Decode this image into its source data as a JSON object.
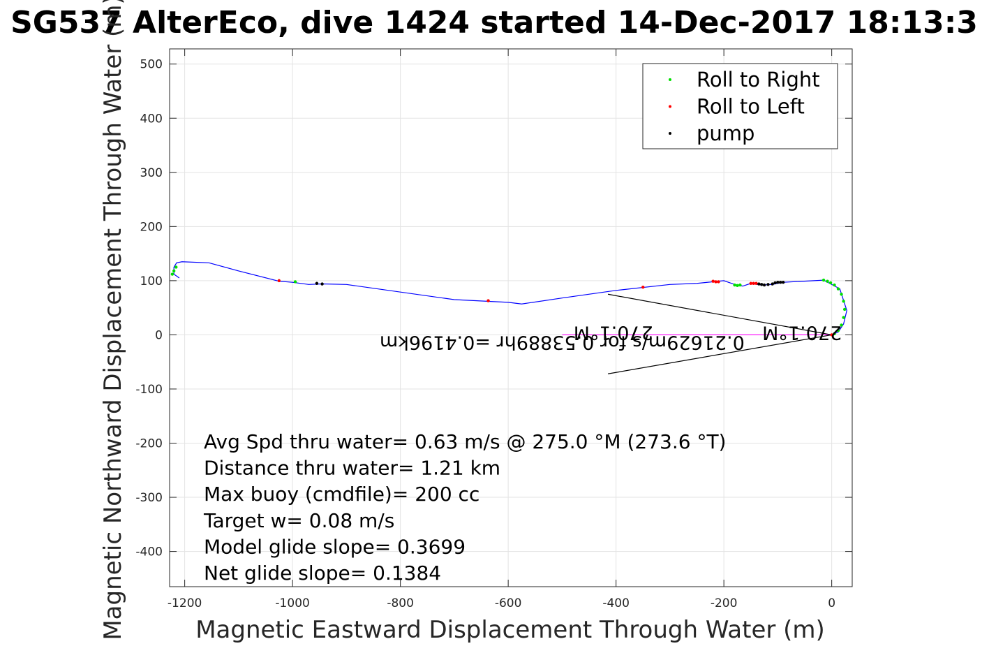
{
  "chart_data": {
    "type": "line",
    "title": "SG537 AlterEco, dive 1424 started 14-Dec-2017 18:13:3",
    "xlabel": "Magnetic Eastward Displacement Through Water (m)",
    "ylabel": "Magnetic Northward Displacement Through Water (m)",
    "xlim": [
      -1228,
      38
    ],
    "ylim": [
      -465,
      528
    ],
    "xticks": [
      -1200,
      -1000,
      -800,
      -600,
      -400,
      -200,
      0
    ],
    "yticks": [
      -400,
      -300,
      -200,
      -100,
      0,
      100,
      200,
      300,
      400,
      500
    ],
    "grid": true,
    "legend_placement": "top-right",
    "colors": {
      "track": "#0000ff",
      "roll_right": "#00e000",
      "roll_left": "#ff0000",
      "pump": "#000000",
      "current": "#ff00ff",
      "arrow": "#000000"
    },
    "series": [
      {
        "name": "Roll to Right",
        "marker": "dot",
        "x": [
          -1223,
          -1220,
          -1216,
          -995,
          -180,
          -175,
          -170,
          -15,
          -8,
          -2,
          5,
          12,
          18,
          22,
          24,
          22,
          18,
          12,
          5
        ],
        "y": [
          112,
          118,
          125,
          98,
          92,
          91,
          92,
          101,
          99,
          96,
          92,
          85,
          75,
          62,
          47,
          32,
          18,
          8,
          2
        ]
      },
      {
        "name": "Roll to Left",
        "marker": "dot",
        "x": [
          -1025,
          -637,
          -350,
          -220,
          -215,
          -210,
          -150,
          -145,
          -140,
          0
        ],
        "y": [
          100,
          63,
          88,
          99,
          98,
          98,
          95,
          95,
          95,
          0
        ]
      },
      {
        "name": "pump",
        "marker": "dot",
        "x": [
          -955,
          -945,
          -135,
          -130,
          -125,
          -118,
          -110,
          -105,
          -100,
          -95,
          -90
        ],
        "y": [
          95,
          94,
          94,
          93,
          92,
          93,
          94,
          96,
          97,
          97,
          97
        ]
      },
      {
        "name": "",
        "role": "track",
        "x": [
          -1210,
          -1220,
          -1220,
          -1215,
          -1205,
          -1155,
          -1100,
          -1025,
          -1000,
          -970,
          -945,
          -900,
          -700,
          -600,
          -575,
          -500,
          -400,
          -300,
          -250,
          -200,
          -180,
          -165,
          -150,
          -130,
          -110,
          -90,
          -15,
          15,
          28,
          22,
          12,
          0
        ],
        "y": [
          105,
          112,
          125,
          133,
          135,
          133,
          118,
          99,
          97,
          93,
          94,
          93,
          65,
          60,
          57,
          68,
          82,
          93,
          95,
          100,
          93,
          90,
          95,
          92,
          93,
          97,
          101,
          85,
          45,
          20,
          5,
          0
        ]
      },
      {
        "name": "",
        "role": "current-vector",
        "x": [
          0,
          -500
        ],
        "y": [
          0,
          0
        ]
      }
    ],
    "arrows": [
      {
        "x": [
          0,
          -415
        ],
        "y": [
          0,
          75
        ]
      },
      {
        "x": [
          0,
          -415
        ],
        "y": [
          0,
          -72
        ]
      }
    ],
    "annotations": [
      "Avg Spd thru water=  0.63 m/s @ 275.0 °M (273.6 °T)",
      "Distance thru water=  1.21 km",
      "Max buoy (cmdfile)= 200 cc",
      "Target w= 0.08 m/s",
      "Model glide slope= 0.3699",
      "Net glide slope= 0.1384"
    ],
    "rotated_annotations": [
      {
        "text": "0.21629m/s for 0.53889hr =0.4196km",
        "x": -500,
        "y": 0
      },
      {
        "text": "270.1°M",
        "x": -405,
        "y": 18
      },
      {
        "text": "270.1°M",
        "x": -55,
        "y": 18
      }
    ]
  }
}
